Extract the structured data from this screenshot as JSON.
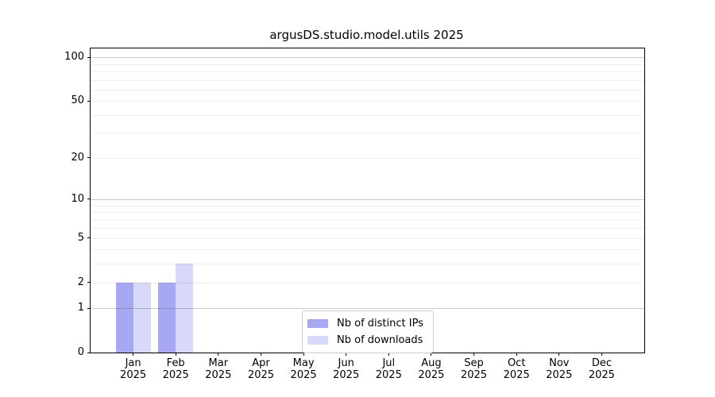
{
  "chart_data": {
    "type": "bar",
    "title": "argusDS.studio.model.utils 2025",
    "year": "2025",
    "categories": [
      "Jan",
      "Feb",
      "Mar",
      "Apr",
      "May",
      "Jun",
      "Jul",
      "Aug",
      "Sep",
      "Oct",
      "Nov",
      "Dec"
    ],
    "series": [
      {
        "name": "Nb of distinct IPs",
        "color": "#a8a8f2",
        "values": [
          2,
          2,
          0,
          0,
          0,
          0,
          0,
          0,
          0,
          0,
          0,
          0
        ]
      },
      {
        "name": "Nb of downloads",
        "color": "#d8d8f8",
        "values": [
          2,
          3,
          0,
          0,
          0,
          0,
          0,
          0,
          0,
          0,
          0,
          0
        ]
      }
    ],
    "yscale": "log1p",
    "ylim": [
      0,
      115
    ],
    "y_ticks": [
      0,
      1,
      2,
      5,
      10,
      20,
      50,
      100
    ],
    "grid": {
      "major": [
        1,
        10,
        100
      ],
      "minor": [
        2,
        3,
        4,
        5,
        6,
        7,
        8,
        9,
        20,
        30,
        40,
        50,
        60,
        70,
        80,
        90
      ]
    },
    "xlabel": "",
    "ylabel": "",
    "legend_position": "lower center",
    "grid_on": true
  },
  "colors": {
    "axis": "#000000",
    "major_grid": "#cccccc",
    "minor_grid": "#ececec",
    "legend_border": "#cccccc",
    "background": "#ffffff"
  }
}
